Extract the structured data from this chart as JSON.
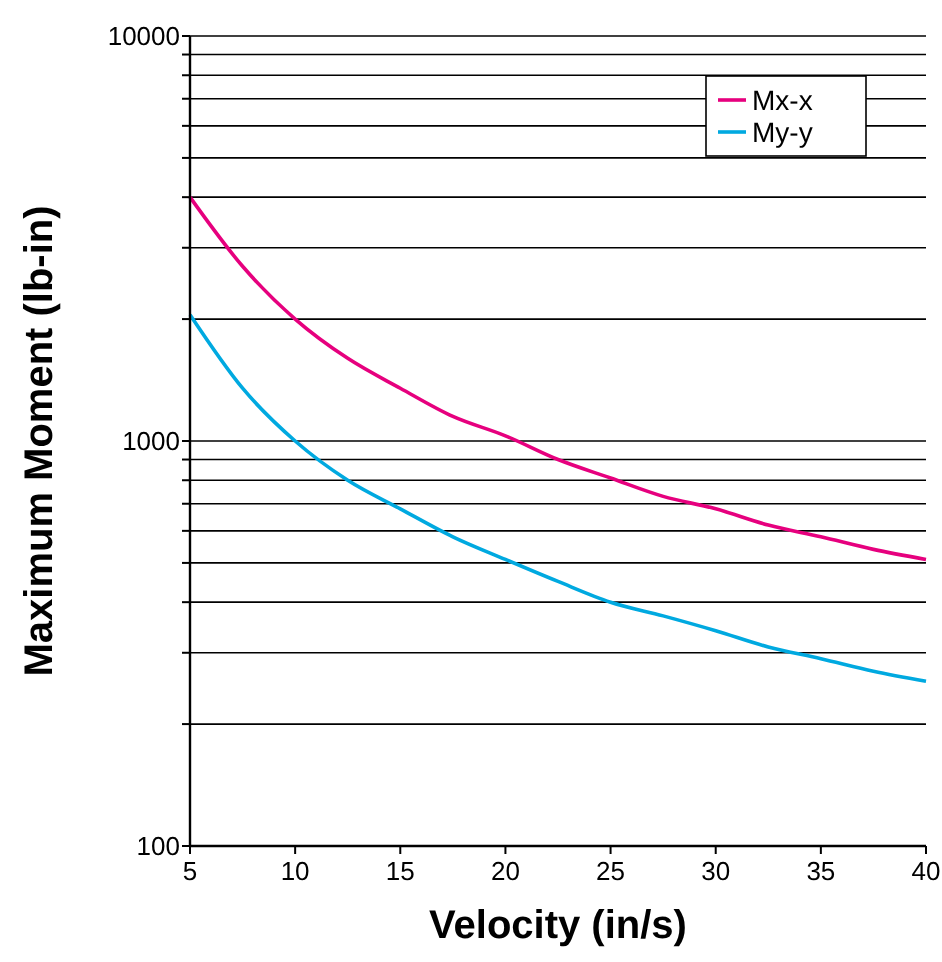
{
  "chart_data": {
    "type": "line",
    "xlabel": "Velocity (in/s)",
    "ylabel": "Maximum Moment (lb-in)",
    "log": "y",
    "x": [
      5,
      7.5,
      10,
      12.5,
      15,
      17.5,
      20,
      22.5,
      25,
      27.5,
      30,
      32.5,
      35,
      37.5,
      40
    ],
    "series": [
      {
        "name": "Mx-x",
        "color": "#e6007e",
        "values": [
          4000,
          2700,
          2000,
          1600,
          1350,
          1150,
          1030,
          900,
          810,
          730,
          680,
          620,
          580,
          540,
          510
        ]
      },
      {
        "name": "My-y",
        "color": "#00a9e0",
        "values": [
          2050,
          1350,
          1000,
          800,
          680,
          580,
          510,
          450,
          400,
          370,
          340,
          310,
          290,
          270,
          255
        ]
      }
    ],
    "xlim": [
      5,
      40
    ],
    "xticks": [
      5,
      10,
      15,
      20,
      25,
      30,
      35,
      40
    ],
    "ylim": [
      100,
      10000
    ],
    "yticks": [
      100,
      {
        "value": 200,
        "label": null
      },
      {
        "value": 300,
        "label": null
      },
      {
        "value": 400,
        "label": null
      },
      {
        "value": 500,
        "label": null
      },
      {
        "value": 600,
        "label": null
      },
      {
        "value": 700,
        "label": null
      },
      {
        "value": 800,
        "label": null
      },
      {
        "value": 900,
        "label": null
      },
      1000,
      {
        "value": 2000,
        "label": null
      },
      {
        "value": 3000,
        "label": null
      },
      {
        "value": 4000,
        "label": null
      },
      {
        "value": 5000,
        "label": null
      },
      {
        "value": 6000,
        "label": null
      },
      {
        "value": 7000,
        "label": null
      },
      {
        "value": 8000,
        "label": null
      },
      {
        "value": 9000,
        "label": null
      },
      10000
    ],
    "grid": "y",
    "legend": "top right",
    "marker": "none",
    "line_style": "solid"
  }
}
